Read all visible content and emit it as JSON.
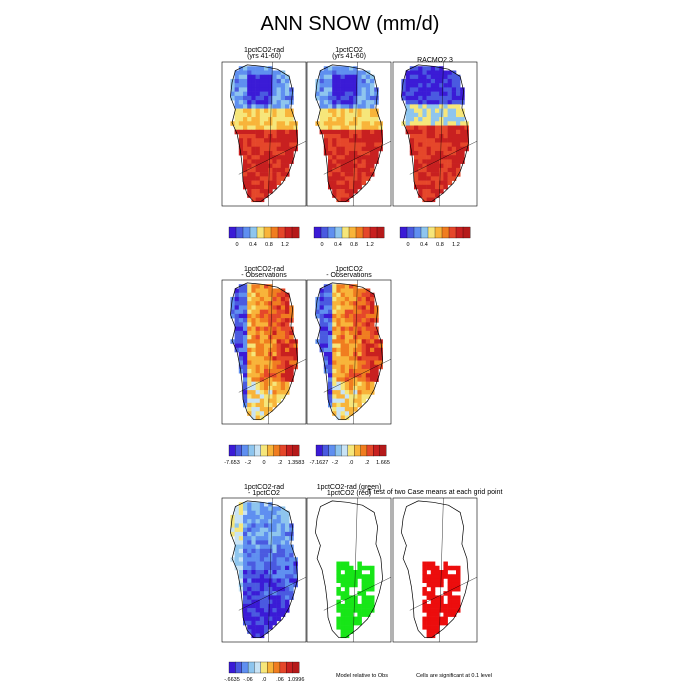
{
  "title": "ANN SNOW (mm/d)",
  "colors": {
    "seq_scale": [
      "#3b1bd6",
      "#4a5ae0",
      "#5f8ff0",
      "#8ec5ee",
      "#f6e67a",
      "#f8b43a",
      "#f07d20",
      "#e5472a",
      "#c82020"
    ],
    "div_scale": [
      "#3b1bd6",
      "#4a5ae0",
      "#5f8ff0",
      "#8ec5ee",
      "#c8e3f5",
      "#f6e67a",
      "#f8b43a",
      "#f07d20",
      "#e5472a",
      "#c82020"
    ],
    "green": "#17e617",
    "red": "#ec0d0d"
  },
  "chart_data": [
    {
      "type": "heatmap",
      "panel": "1pctCO2-rad (yrs 41-60)",
      "title_lines": [
        "1pctCO2-rad",
        "(yrs 41-60)"
      ],
      "scale": "seq",
      "style": "a"
    },
    {
      "type": "heatmap",
      "panel": "1pctCO2 (yrs 41-60)",
      "title_lines": [
        "1pctCO2",
        "(yrs 41-60)"
      ],
      "scale": "seq",
      "style": "a"
    },
    {
      "type": "heatmap",
      "panel": "RACMO2.3",
      "title_lines": [
        "RACMO2.3"
      ],
      "scale": "seq",
      "style": "b"
    },
    {
      "type": "heatmap",
      "panel": "1pctCO2-rad - Observations",
      "title_lines": [
        "1pctCO2-rad",
        "- Observations"
      ],
      "scale": "div",
      "style": "d"
    },
    {
      "type": "heatmap",
      "panel": "1pctCO2 - Observations",
      "title_lines": [
        "1pctCO2",
        "- Observations"
      ],
      "scale": "div",
      "style": "d"
    },
    {
      "type": "heatmap",
      "panel": "1pctCO2-rad - 1pctCO2",
      "title_lines": [
        "1pctCO2-rad",
        "- 1pctCO2"
      ],
      "scale": "div",
      "style": "c"
    },
    {
      "type": "heatmap",
      "panel": "1pctCO2-rad (green) 1pctCO2 (red)",
      "title_lines": [
        "1pctCO2-rad (green)",
        "1pctCO2 (red)"
      ],
      "scale": "sig",
      "style": "green"
    },
    {
      "type": "heatmap",
      "panel": "T test of two Case means at each grid point",
      "title_lines": [
        "T test of two Case means at each grid point"
      ],
      "scale": "sig",
      "style": "red"
    }
  ],
  "colorbars": [
    {
      "ticks": [
        "0",
        "0.4",
        "0.8",
        "1.2"
      ],
      "kind": "seq"
    },
    {
      "ticks": [
        "0",
        "0.4",
        "0.8",
        "1.2"
      ],
      "kind": "seq"
    },
    {
      "ticks": [
        "0",
        "0.4",
        "0.8",
        "1.2"
      ],
      "kind": "seq"
    },
    {
      "ticks": [
        "-7.653",
        "-.2",
        "0",
        ".2",
        "1.3583"
      ],
      "kind": "div"
    },
    {
      "ticks": [
        "-7.1627",
        "-.2",
        ".0",
        ".2",
        "1.665"
      ],
      "kind": "div"
    },
    {
      "ticks": [
        "-.6635",
        "-.06",
        ".0",
        ".06",
        "1.0996"
      ],
      "kind": "div"
    }
  ],
  "notes": {
    "model_relative": "Model relative to Obs",
    "significance": "Cells are significant at 0.1 level"
  }
}
